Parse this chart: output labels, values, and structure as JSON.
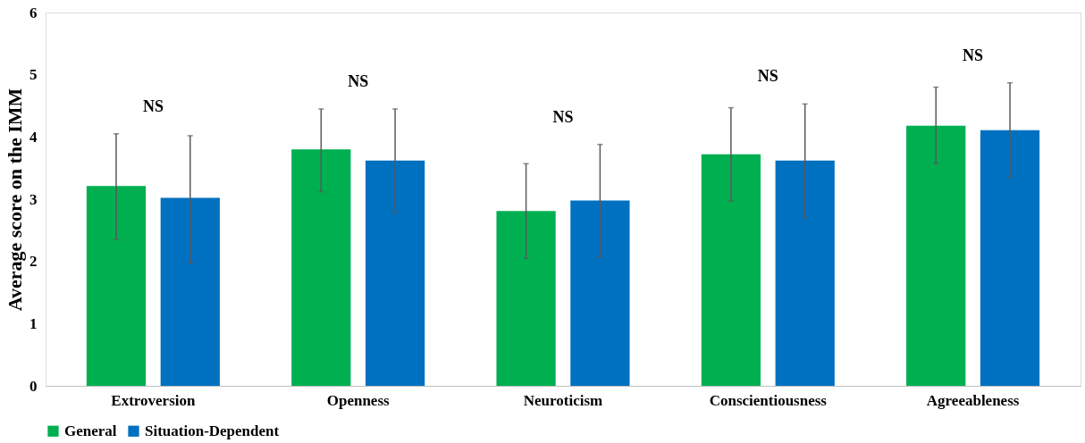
{
  "chart_data": {
    "type": "bar",
    "ylabel": "Average score on the IMM",
    "categories": [
      "Extroversion",
      "Openness",
      "Neuroticism",
      "Conscientiousness",
      "Agreeableness"
    ],
    "series": [
      {
        "name": "General",
        "color": "#00b050",
        "values": [
          3.21,
          3.8,
          2.81,
          3.72,
          4.18
        ],
        "errors": [
          [
            2.35,
            4.05
          ],
          [
            3.12,
            4.45
          ],
          [
            2.05,
            3.57
          ],
          [
            2.97,
            4.47
          ],
          [
            3.57,
            4.8
          ]
        ]
      },
      {
        "name": "Situation-Dependent",
        "color": "#0070c0",
        "values": [
          3.02,
          3.62,
          2.98,
          3.62,
          4.11
        ],
        "errors": [
          [
            1.97,
            4.02
          ],
          [
            2.78,
            4.45
          ],
          [
            2.07,
            3.88
          ],
          [
            2.7,
            4.53
          ],
          [
            3.35,
            4.87
          ]
        ]
      }
    ],
    "ylim": [
      0,
      6
    ],
    "yticks": [
      0,
      1,
      2,
      3,
      4,
      5,
      6
    ],
    "grid": false,
    "legend": "bottom",
    "annotations": [
      "NS",
      "NS",
      "NS",
      "NS",
      "NS"
    ]
  }
}
